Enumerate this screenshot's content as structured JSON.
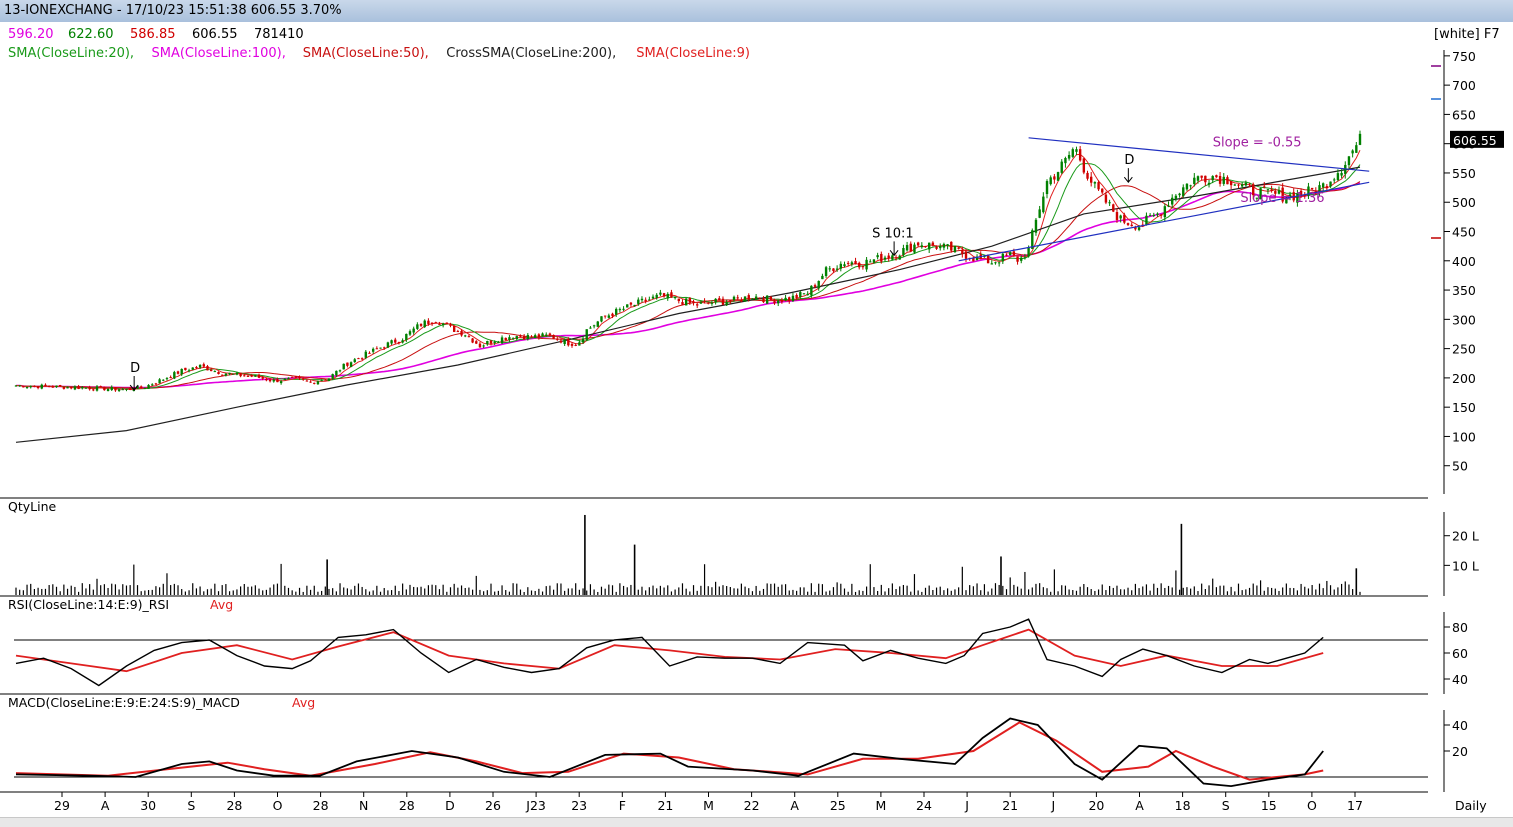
{
  "window": {
    "title": "13-IONEXCHANG - 17/10/23 15:51:38 606.55 3.70%",
    "theme_label": "[white] F7"
  },
  "quote": {
    "open": "596.20",
    "high": "622.60",
    "low": "586.85",
    "close": "606.55",
    "volume": "781410",
    "colors": {
      "open": "#e000e0",
      "high": "#008000",
      "low": "#d00000",
      "close": "#000000",
      "volume": "#000000"
    }
  },
  "indicators": [
    {
      "label": "SMA(CloseLine:20),",
      "color": "#1a9a1a"
    },
    {
      "label": "SMA(CloseLine:100),",
      "color": "#e000e0"
    },
    {
      "label": "SMA(CloseLine:50),",
      "color": "#c81010"
    },
    {
      "label": "CrossSMA(CloseLine:200),",
      "color": "#202020"
    },
    {
      "label": "SMA(CloseLine:9)",
      "color": "#e02020"
    }
  ],
  "chart_data": [
    {
      "type": "candlestick",
      "panel": "price",
      "ylim": [
        0,
        760
      ],
      "yticks": [
        "750",
        "700",
        "650",
        "600",
        "550",
        "500",
        "450",
        "400",
        "350",
        "300",
        "250",
        "200",
        "150",
        "100",
        "50"
      ],
      "last_price_label": "606.55",
      "series": [
        {
          "name": "SMA(CloseLine:20)",
          "color": "#1a9a1a"
        },
        {
          "name": "SMA(CloseLine:100)",
          "color": "#e000e0"
        },
        {
          "name": "SMA(CloseLine:50)",
          "color": "#c81010"
        },
        {
          "name": "CrossSMA(CloseLine:200)",
          "color": "#202020"
        },
        {
          "name": "SMA(CloseLine:9)",
          "color": "#e02020"
        }
      ],
      "close_path": [
        [
          0,
          187
        ],
        [
          20,
          185
        ],
        [
          40,
          183
        ],
        [
          60,
          180
        ],
        [
          70,
          185
        ],
        [
          80,
          198
        ],
        [
          90,
          212
        ],
        [
          100,
          220
        ],
        [
          110,
          210
        ],
        [
          120,
          205
        ],
        [
          130,
          202
        ],
        [
          140,
          195
        ],
        [
          150,
          198
        ],
        [
          160,
          193
        ],
        [
          170,
          200
        ],
        [
          180,
          225
        ],
        [
          190,
          240
        ],
        [
          200,
          255
        ],
        [
          210,
          268
        ],
        [
          220,
          292
        ],
        [
          228,
          300
        ],
        [
          236,
          285
        ],
        [
          244,
          275
        ],
        [
          252,
          255
        ],
        [
          260,
          265
        ],
        [
          270,
          272
        ],
        [
          280,
          270
        ],
        [
          290,
          272
        ],
        [
          300,
          260
        ],
        [
          305,
          258
        ],
        [
          310,
          282
        ],
        [
          320,
          305
        ],
        [
          330,
          318
        ],
        [
          340,
          330
        ],
        [
          350,
          340
        ],
        [
          360,
          332
        ],
        [
          370,
          325
        ],
        [
          380,
          330
        ],
        [
          390,
          332
        ],
        [
          400,
          340
        ],
        [
          410,
          333
        ],
        [
          420,
          335
        ],
        [
          430,
          345
        ],
        [
          440,
          383
        ],
        [
          450,
          398
        ],
        [
          460,
          396
        ],
        [
          470,
          405
        ],
        [
          480,
          415
        ],
        [
          490,
          430
        ],
        [
          500,
          425
        ],
        [
          510,
          418
        ],
        [
          520,
          405
        ],
        [
          530,
          398
        ],
        [
          535,
          404
        ],
        [
          540,
          410
        ],
        [
          545,
          400
        ],
        [
          550,
          420
        ],
        [
          555,
          480
        ],
        [
          560,
          535
        ],
        [
          565,
          550
        ],
        [
          570,
          570
        ],
        [
          575,
          595
        ],
        [
          580,
          560
        ],
        [
          585,
          530
        ],
        [
          590,
          508
        ],
        [
          600,
          470
        ],
        [
          610,
          460
        ],
        [
          620,
          480
        ],
        [
          630,
          515
        ],
        [
          640,
          540
        ],
        [
          650,
          545
        ],
        [
          660,
          538
        ],
        [
          670,
          520
        ],
        [
          680,
          515
        ],
        [
          690,
          510
        ],
        [
          700,
          515
        ],
        [
          710,
          528
        ],
        [
          720,
          560
        ],
        [
          730,
          606
        ]
      ],
      "sma200_path": [
        [
          0,
          90
        ],
        [
          60,
          110
        ],
        [
          120,
          150
        ],
        [
          180,
          188
        ],
        [
          240,
          222
        ],
        [
          300,
          265
        ],
        [
          360,
          310
        ],
        [
          420,
          345
        ],
        [
          480,
          385
        ],
        [
          530,
          425
        ],
        [
          580,
          480
        ],
        [
          640,
          510
        ],
        [
          730,
          560
        ]
      ],
      "annotations": [
        {
          "text": "D",
          "x": 62,
          "y": 210
        },
        {
          "text": "S 10:1",
          "x": 465,
          "y": 440
        },
        {
          "text": "D",
          "x": 602,
          "y": 565
        },
        {
          "text": "Slope = -0.55",
          "x": 650,
          "y": 595
        },
        {
          "text": "Slope = 1.36",
          "x": 665,
          "y": 500
        }
      ],
      "trendlines": [
        {
          "from": [
            550,
            610
          ],
          "to": [
            735,
            553
          ]
        },
        {
          "from": [
            512,
            400
          ],
          "to": [
            735,
            534
          ]
        }
      ]
    },
    {
      "type": "bar",
      "panel": "volume",
      "title": "QtyLine",
      "yticks": [
        "20 L",
        "10 L"
      ],
      "ylim": [
        0,
        28
      ]
    },
    {
      "type": "line",
      "panel": "rsi",
      "title": "RSI(CloseLine:14:E:9)_RSI",
      "avg_label": "Avg",
      "ylim": [
        30,
        90
      ],
      "yticks": [
        "80",
        "60",
        "40"
      ],
      "reference_line": 70,
      "series": [
        {
          "name": "RSI",
          "color": "#000000"
        },
        {
          "name": "Avg",
          "color": "#e02020"
        }
      ],
      "rsi_path": [
        [
          0,
          52
        ],
        [
          15,
          56
        ],
        [
          30,
          48
        ],
        [
          45,
          35
        ],
        [
          60,
          50
        ],
        [
          75,
          62
        ],
        [
          90,
          68
        ],
        [
          105,
          70
        ],
        [
          120,
          58
        ],
        [
          135,
          50
        ],
        [
          150,
          48
        ],
        [
          160,
          54
        ],
        [
          175,
          72
        ],
        [
          190,
          74
        ],
        [
          205,
          78
        ],
        [
          220,
          60
        ],
        [
          235,
          45
        ],
        [
          250,
          55
        ],
        [
          265,
          49
        ],
        [
          280,
          45
        ],
        [
          295,
          48
        ],
        [
          310,
          64
        ],
        [
          325,
          70
        ],
        [
          340,
          72
        ],
        [
          355,
          50
        ],
        [
          370,
          57
        ],
        [
          385,
          56
        ],
        [
          400,
          56
        ],
        [
          415,
          52
        ],
        [
          430,
          68
        ],
        [
          450,
          66
        ],
        [
          460,
          54
        ],
        [
          475,
          62
        ],
        [
          490,
          56
        ],
        [
          505,
          52
        ],
        [
          515,
          58
        ],
        [
          525,
          75
        ],
        [
          540,
          80
        ],
        [
          550,
          86
        ],
        [
          560,
          55
        ],
        [
          575,
          50
        ],
        [
          590,
          42
        ],
        [
          600,
          55
        ],
        [
          612,
          63
        ],
        [
          625,
          58
        ],
        [
          640,
          50
        ],
        [
          655,
          45
        ],
        [
          670,
          55
        ],
        [
          680,
          52
        ],
        [
          690,
          56
        ],
        [
          700,
          60
        ],
        [
          710,
          72
        ]
      ],
      "avg_path": [
        [
          0,
          58
        ],
        [
          30,
          52
        ],
        [
          60,
          46
        ],
        [
          90,
          60
        ],
        [
          120,
          66
        ],
        [
          150,
          55
        ],
        [
          175,
          65
        ],
        [
          205,
          76
        ],
        [
          235,
          58
        ],
        [
          265,
          52
        ],
        [
          295,
          48
        ],
        [
          325,
          66
        ],
        [
          355,
          62
        ],
        [
          385,
          57
        ],
        [
          415,
          55
        ],
        [
          445,
          63
        ],
        [
          475,
          60
        ],
        [
          505,
          56
        ],
        [
          525,
          66
        ],
        [
          550,
          78
        ],
        [
          575,
          58
        ],
        [
          600,
          50
        ],
        [
          625,
          58
        ],
        [
          655,
          50
        ],
        [
          685,
          50
        ],
        [
          710,
          60
        ]
      ]
    },
    {
      "type": "line",
      "panel": "macd",
      "title": "MACD(CloseLine:E:9:E:24:S:9)_MACD",
      "avg_label": "Avg",
      "ylim": [
        -10,
        50
      ],
      "yticks": [
        "40",
        "20"
      ],
      "reference_line": 0,
      "series": [
        {
          "name": "MACD",
          "color": "#000000"
        },
        {
          "name": "Avg",
          "color": "#e02020"
        }
      ],
      "macd_path": [
        [
          0,
          2
        ],
        [
          40,
          1
        ],
        [
          65,
          0
        ],
        [
          90,
          10
        ],
        [
          105,
          12
        ],
        [
          120,
          5
        ],
        [
          140,
          1
        ],
        [
          165,
          1
        ],
        [
          185,
          12
        ],
        [
          215,
          20
        ],
        [
          240,
          15
        ],
        [
          265,
          4
        ],
        [
          290,
          0
        ],
        [
          320,
          17
        ],
        [
          350,
          18
        ],
        [
          365,
          8
        ],
        [
          400,
          5
        ],
        [
          425,
          1
        ],
        [
          455,
          18
        ],
        [
          480,
          14
        ],
        [
          510,
          10
        ],
        [
          525,
          30
        ],
        [
          540,
          45
        ],
        [
          555,
          40
        ],
        [
          575,
          10
        ],
        [
          590,
          -2
        ],
        [
          610,
          24
        ],
        [
          625,
          22
        ],
        [
          645,
          -5
        ],
        [
          660,
          -7
        ],
        [
          680,
          -2
        ],
        [
          700,
          2
        ],
        [
          710,
          20
        ]
      ],
      "avg_path": [
        [
          0,
          3
        ],
        [
          50,
          1
        ],
        [
          95,
          8
        ],
        [
          115,
          11
        ],
        [
          135,
          6
        ],
        [
          160,
          1
        ],
        [
          195,
          10
        ],
        [
          225,
          19
        ],
        [
          250,
          12
        ],
        [
          275,
          3
        ],
        [
          300,
          4
        ],
        [
          330,
          18
        ],
        [
          360,
          15
        ],
        [
          390,
          6
        ],
        [
          430,
          2
        ],
        [
          460,
          14
        ],
        [
          490,
          14
        ],
        [
          520,
          20
        ],
        [
          545,
          42
        ],
        [
          565,
          28
        ],
        [
          590,
          4
        ],
        [
          615,
          8
        ],
        [
          630,
          20
        ],
        [
          650,
          8
        ],
        [
          670,
          -2
        ],
        [
          700,
          2
        ],
        [
          710,
          5
        ]
      ]
    },
    {
      "type": "axis",
      "panel": "dates",
      "xticks": [
        "29",
        "A",
        "30",
        "S",
        "28",
        "O",
        "28",
        "N",
        "28",
        "D",
        "26",
        "J23",
        "23",
        "F",
        "21",
        "M",
        "22",
        "A",
        "25",
        "M",
        "24",
        "J",
        "21",
        "J",
        "20",
        "A",
        "18",
        "S",
        "15",
        "O",
        "17"
      ],
      "period_label": "Daily"
    }
  ]
}
